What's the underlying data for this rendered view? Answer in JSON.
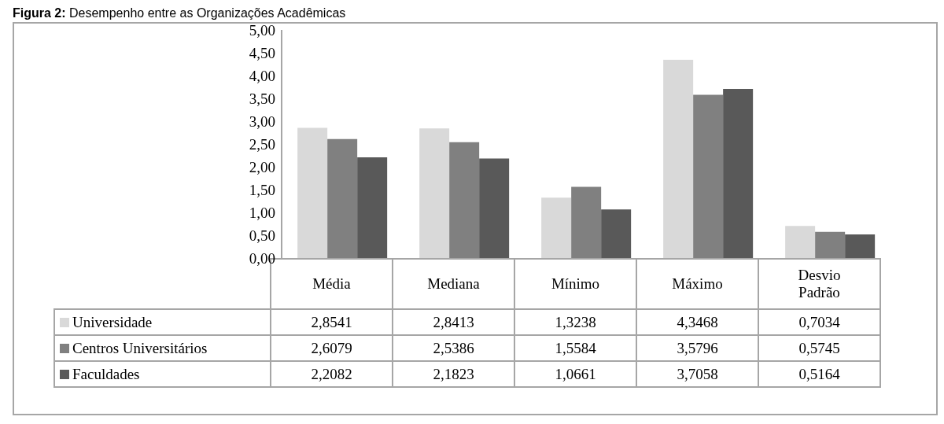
{
  "chart_data": {
    "type": "bar",
    "title": "Figura 2: Desempenho entre as Organizações Acadêmicas",
    "categories": [
      "Média",
      "Mediana",
      "Mínimo",
      "Máximo",
      "Desvio Padrão"
    ],
    "series": [
      {
        "name": "Universidade",
        "color": "#d9d9d9",
        "values": [
          2.8541,
          2.8413,
          1.3238,
          4.3468,
          0.7034
        ],
        "value_labels": [
          "2,8541",
          "2,8413",
          "1,3238",
          "4,3468",
          "0,7034"
        ]
      },
      {
        "name": "Centros Universitários",
        "color": "#808080",
        "values": [
          2.6079,
          2.5386,
          1.5584,
          3.5796,
          0.5745
        ],
        "value_labels": [
          "2,6079",
          "2,5386",
          "1,5584",
          "3,5796",
          "0,5745"
        ]
      },
      {
        "name": "Faculdades",
        "color": "#595959",
        "values": [
          2.2082,
          2.1823,
          1.0661,
          3.7058,
          0.5164
        ],
        "value_labels": [
          "2,2082",
          "2,1823",
          "1,0661",
          "3,7058",
          "0,5164"
        ]
      }
    ],
    "ylim": [
      0,
      5
    ],
    "yticks": [
      {
        "value": 0,
        "label": "0,00"
      },
      {
        "value": 0.5,
        "label": "0,50"
      },
      {
        "value": 1,
        "label": "1,00"
      },
      {
        "value": 1.5,
        "label": "1,50"
      },
      {
        "value": 2,
        "label": "2,00"
      },
      {
        "value": 2.5,
        "label": "2,50"
      },
      {
        "value": 3,
        "label": "3,00"
      },
      {
        "value": 3.5,
        "label": "3,50"
      },
      {
        "value": 4,
        "label": "4,00"
      },
      {
        "value": 4.5,
        "label": "4,50"
      },
      {
        "value": 5,
        "label": "5,00"
      }
    ],
    "legend": "bottom",
    "grid": false
  }
}
